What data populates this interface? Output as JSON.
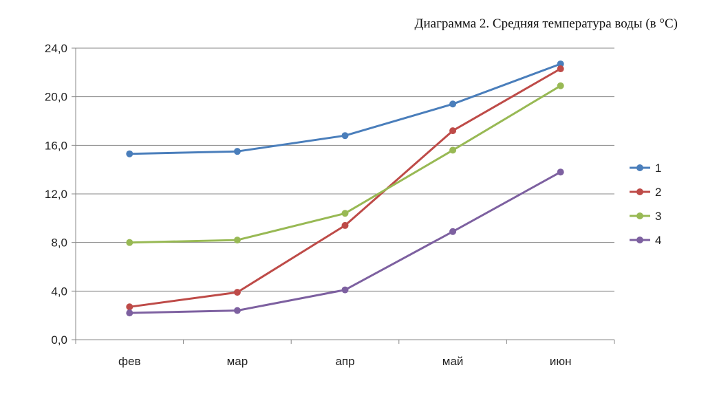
{
  "chart_data": {
    "type": "line",
    "title": "Диаграмма 2. Средняя температура воды (в °С)",
    "xlabel": "",
    "ylabel": "",
    "categories": [
      "фев",
      "мар",
      "апр",
      "май",
      "июн"
    ],
    "ylim": [
      0,
      24
    ],
    "yticks": [
      "0,0",
      "4,0",
      "8,0",
      "12,0",
      "16,0",
      "20,0",
      "24,0"
    ],
    "grid": true,
    "legend_position": "right",
    "series": [
      {
        "name": "1",
        "color": "#4a7ebb",
        "values": [
          15.3,
          15.5,
          16.8,
          19.4,
          22.7
        ]
      },
      {
        "name": "2",
        "color": "#be4b48",
        "values": [
          2.7,
          3.9,
          9.4,
          17.2,
          22.3
        ]
      },
      {
        "name": "3",
        "color": "#98b954",
        "values": [
          8.0,
          8.2,
          10.4,
          15.6,
          20.9
        ]
      },
      {
        "name": "4",
        "color": "#7d60a0",
        "values": [
          2.2,
          2.4,
          4.1,
          8.9,
          13.8
        ]
      }
    ]
  }
}
